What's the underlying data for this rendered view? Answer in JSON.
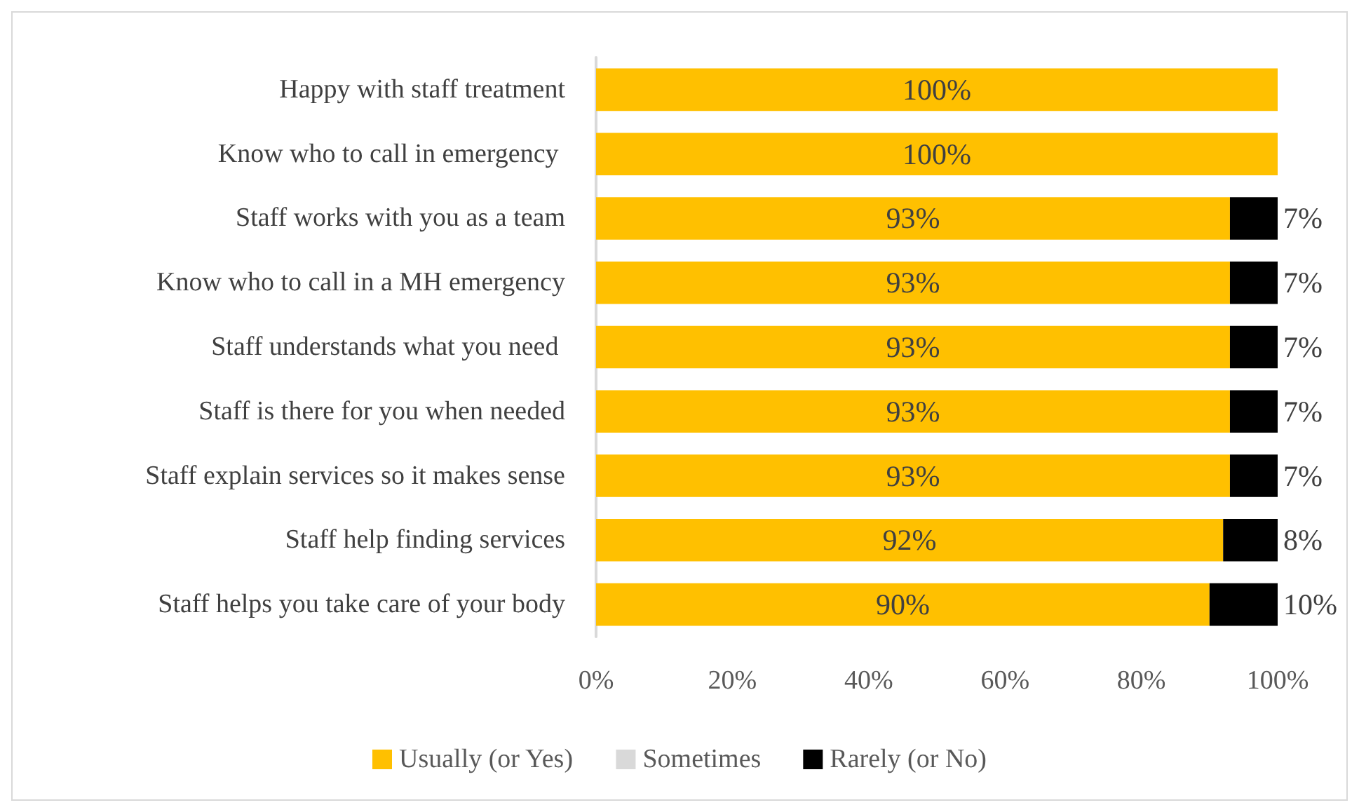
{
  "chart_data": {
    "type": "bar",
    "orientation": "horizontal",
    "stacked": true,
    "categories": [
      "Happy with staff treatment",
      "Know who to call in emergency ",
      "Staff works with you as a team",
      "Know who to call in a MH emergency",
      "Staff understands what you need ",
      "Staff is there for you when needed",
      "Staff explain services so it makes sense",
      "Staff help finding services",
      "Staff helps you take care of your body"
    ],
    "series": [
      {
        "name": "Usually (or Yes)",
        "color": "#ffc000",
        "values": [
          100,
          100,
          93,
          93,
          93,
          93,
          93,
          92,
          90
        ],
        "value_labels": [
          "100%",
          "100%",
          "93%",
          "93%",
          "93%",
          "93%",
          "93%",
          "92%",
          "90%"
        ]
      },
      {
        "name": "Sometimes",
        "color": "#d9d9d9",
        "values": [
          0,
          0,
          0,
          0,
          0,
          0,
          0,
          0,
          0
        ]
      },
      {
        "name": "Rarely (or No)",
        "color": "#000000",
        "values": [
          0,
          0,
          7,
          7,
          7,
          7,
          7,
          8,
          10
        ],
        "value_labels": [
          null,
          null,
          "7%",
          "7%",
          "7%",
          "7%",
          "7%",
          "8%",
          "10%"
        ]
      }
    ],
    "xlim": [
      0,
      100
    ],
    "xticks": [
      {
        "value": 0,
        "label": "0%"
      },
      {
        "value": 20,
        "label": "20%"
      },
      {
        "value": 40,
        "label": "40%"
      },
      {
        "value": 60,
        "label": "60%"
      },
      {
        "value": 80,
        "label": "80%"
      },
      {
        "value": 100,
        "label": "100%"
      }
    ],
    "grid": false,
    "legend": "bottom"
  }
}
